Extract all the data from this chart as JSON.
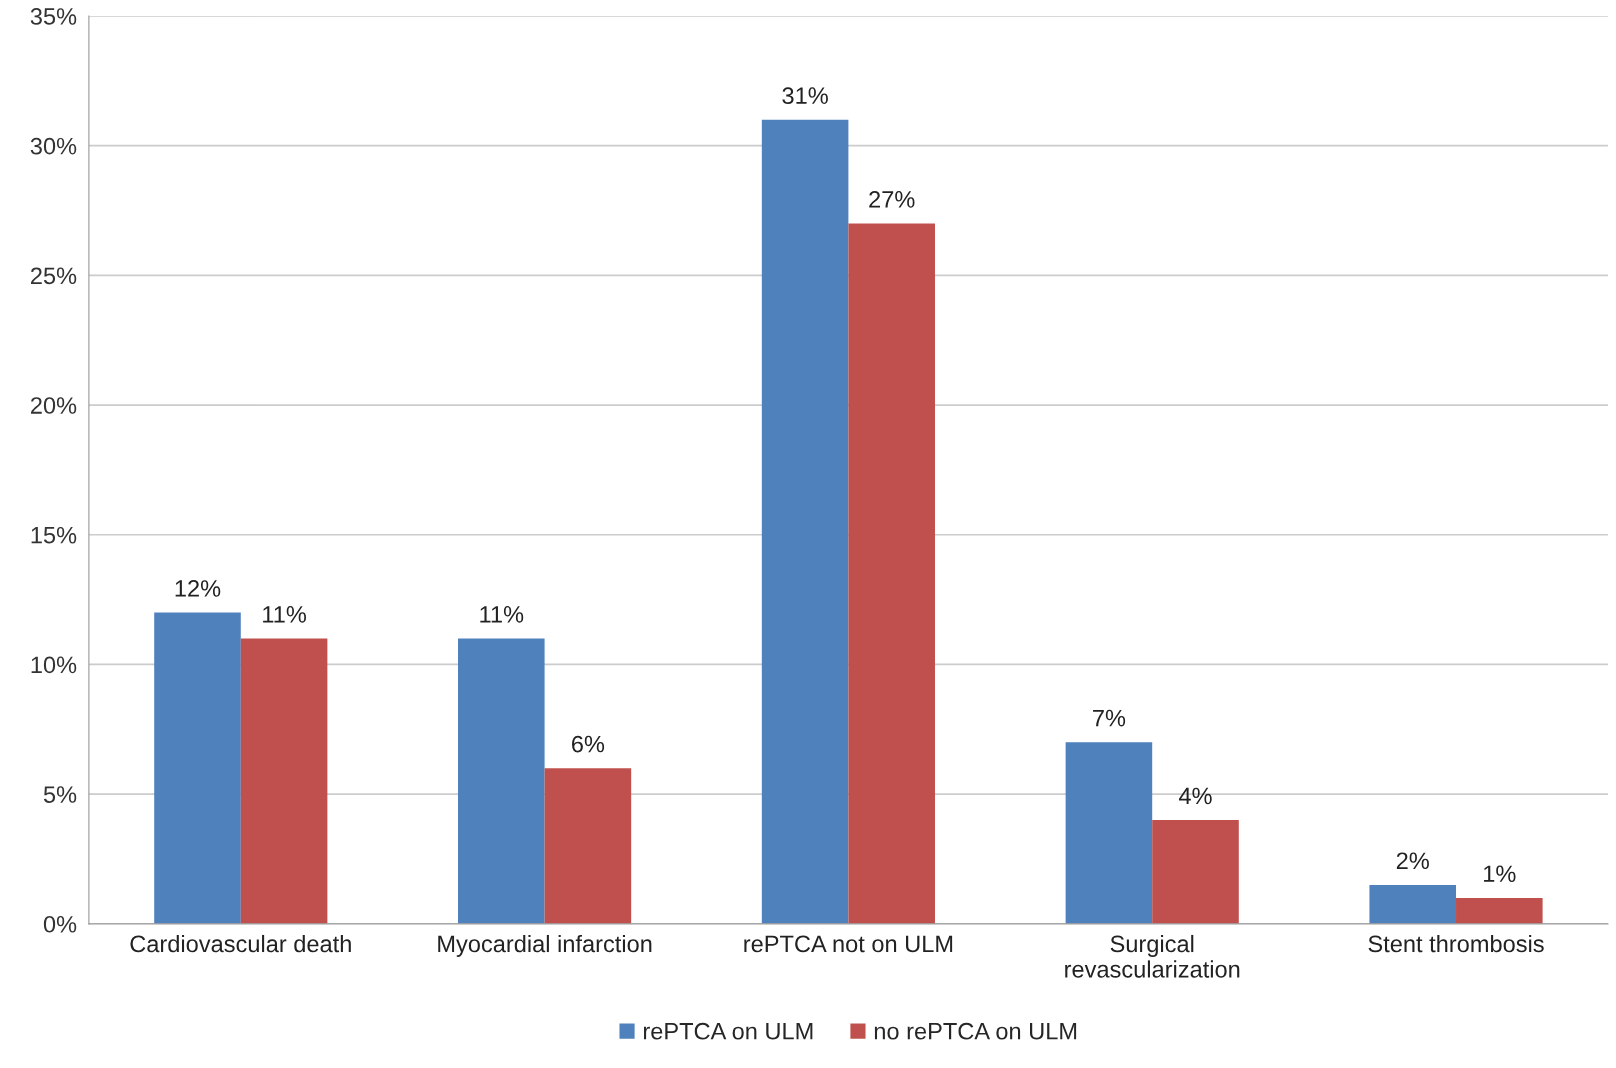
{
  "chart_data": {
    "type": "bar",
    "categories": [
      "Cardiovascular death",
      "Myocardial infarction",
      "rePTCA not on ULM",
      "Surgical\nrevascularization",
      "Stent thrombosis"
    ],
    "series": [
      {
        "name": "rePTCA on ULM",
        "color": "#4f81bd",
        "values": [
          12,
          11,
          31,
          7,
          1.5
        ],
        "value_labels": [
          "12%",
          "11%",
          "31%",
          "7%",
          "2%"
        ]
      },
      {
        "name": "no rePTCA on ULM",
        "color": "#c0504d",
        "values": [
          11,
          6,
          27,
          4,
          1
        ],
        "value_labels": [
          "11%",
          "6%",
          "27%",
          "4%",
          "1%"
        ]
      }
    ],
    "ylim": [
      0,
      35
    ],
    "yticks": [
      {
        "value": 0,
        "label": "0%"
      },
      {
        "value": 5,
        "label": "5%"
      },
      {
        "value": 10,
        "label": "10%"
      },
      {
        "value": 15,
        "label": "15%"
      },
      {
        "value": 20,
        "label": "20%"
      },
      {
        "value": 25,
        "label": "25%"
      },
      {
        "value": 30,
        "label": "30%"
      },
      {
        "value": 35,
        "label": "35%"
      }
    ],
    "grid": "y",
    "legend": "bottom"
  }
}
